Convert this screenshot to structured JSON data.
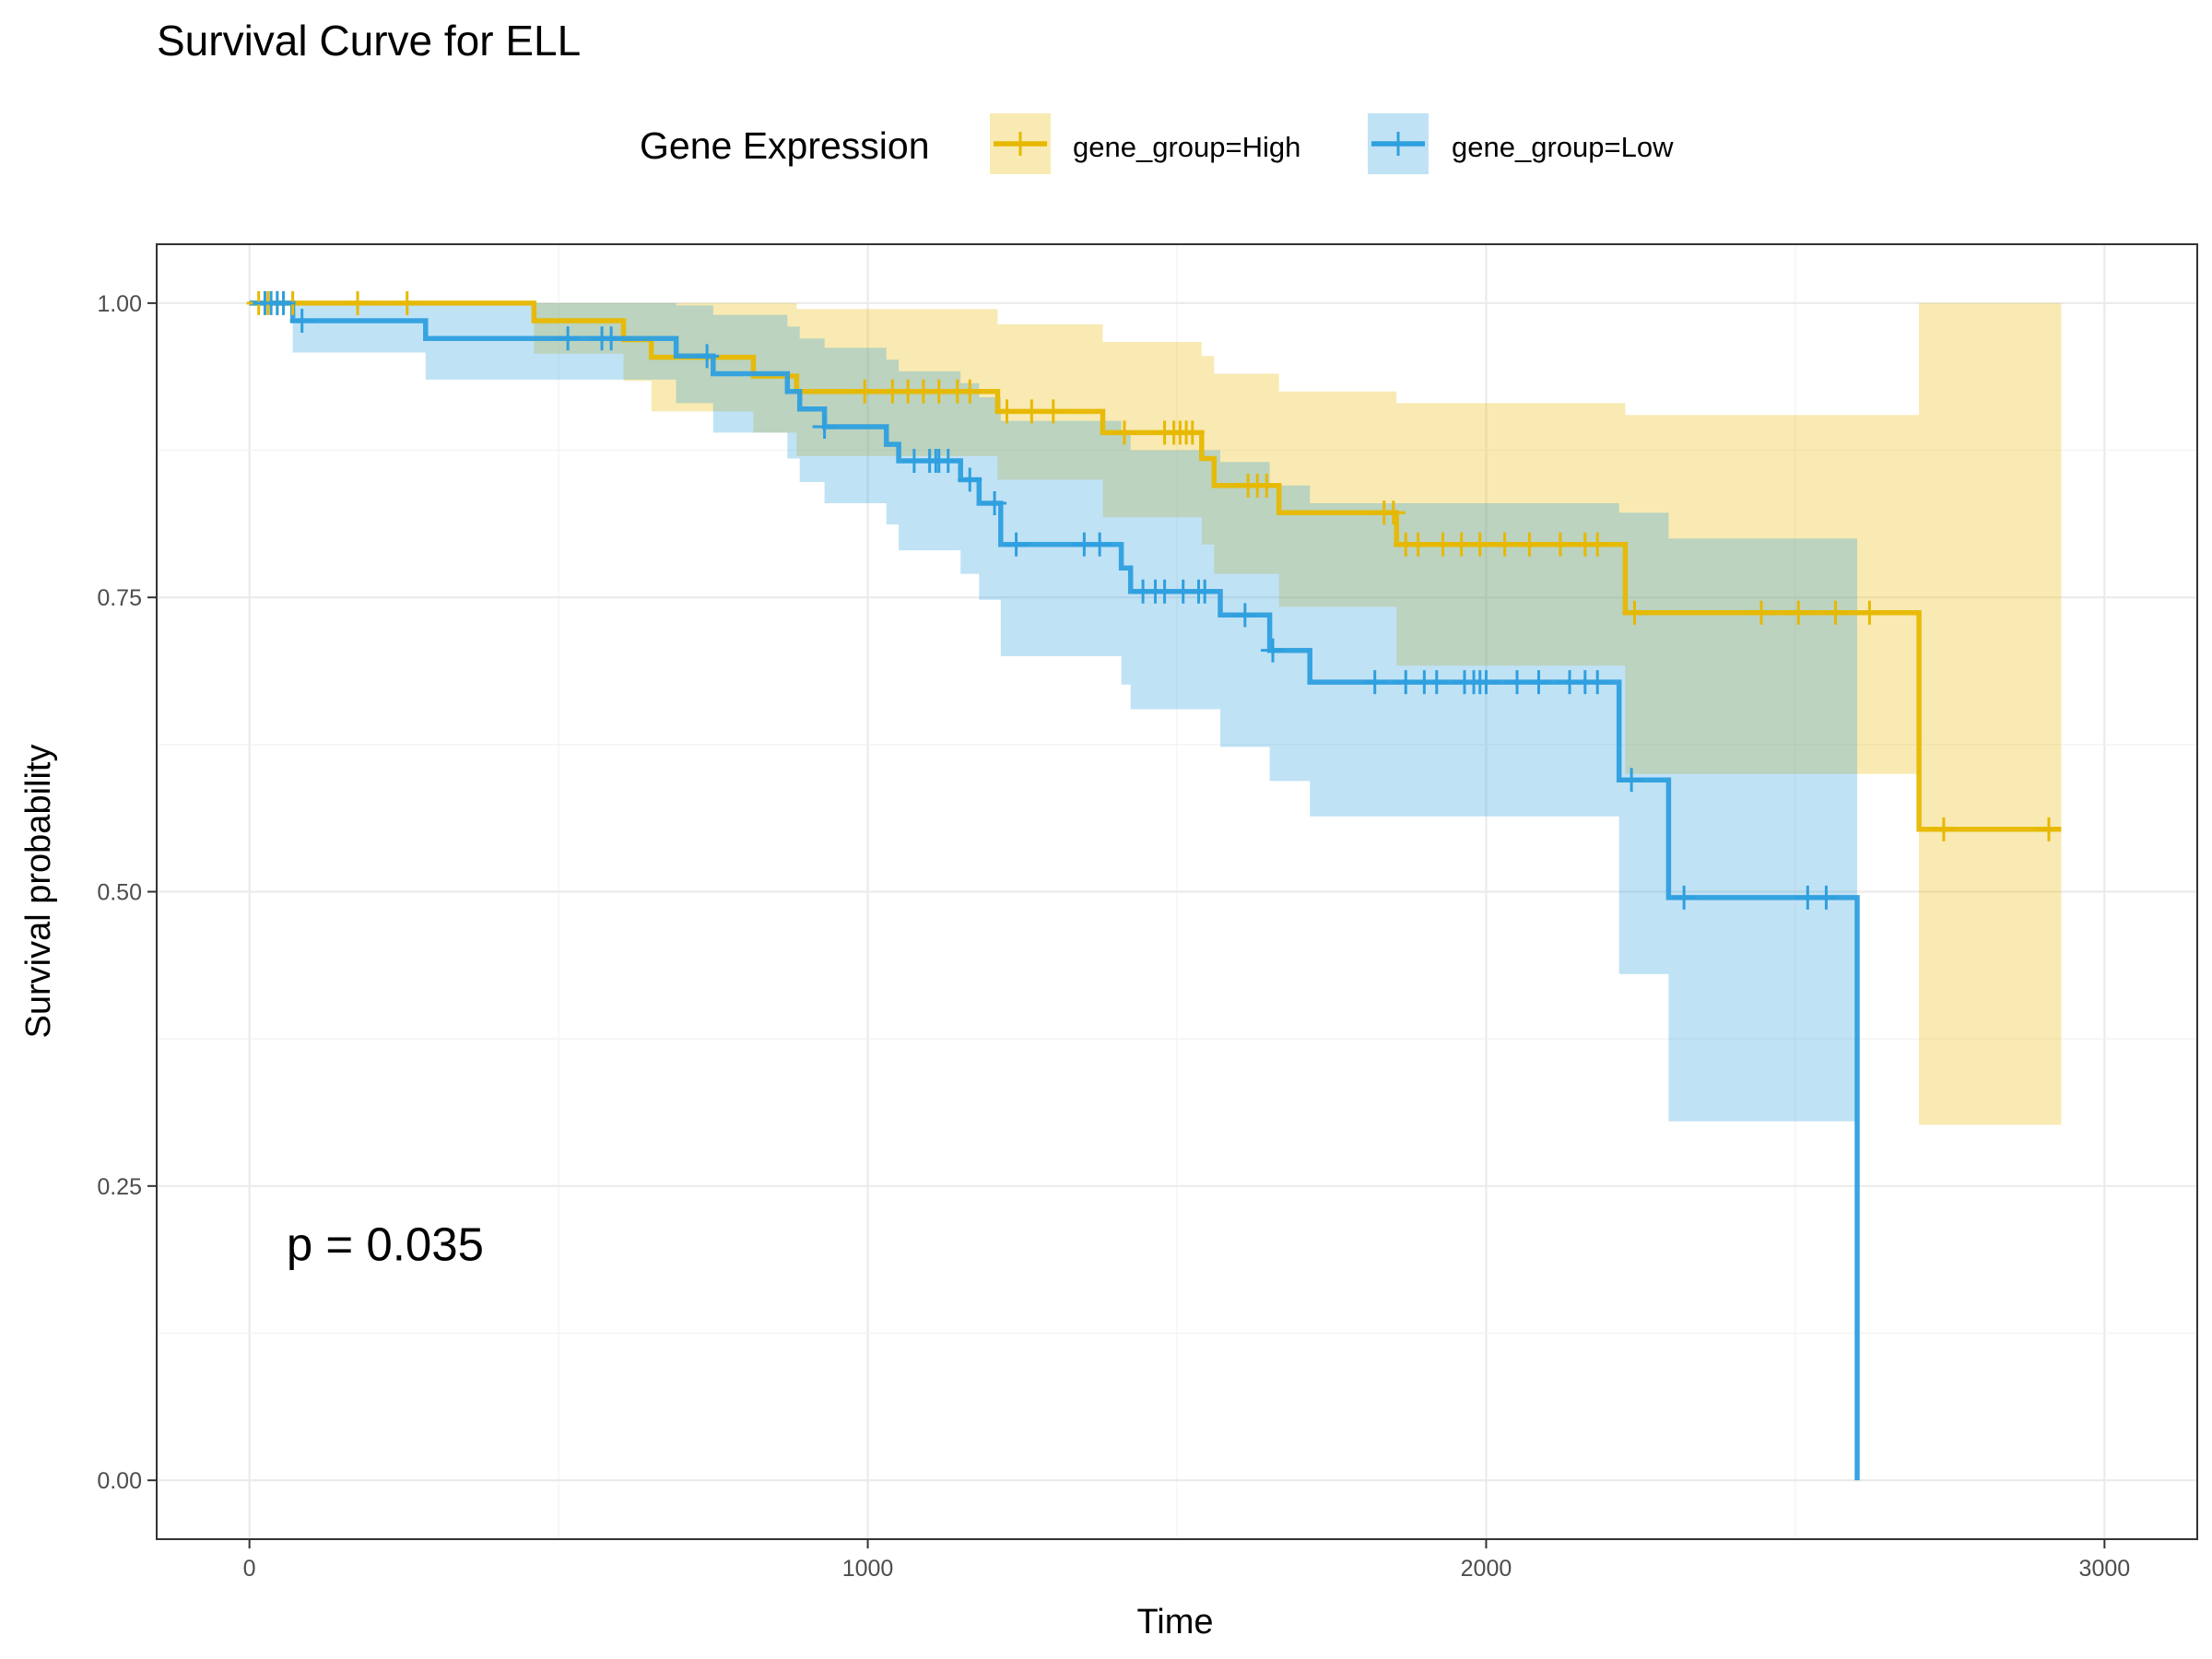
{
  "chart_data": {
    "type": "line",
    "title": "Survival Curve for ELL",
    "xlabel": "Time",
    "ylabel": "Survival probability",
    "xlim": [
      -150,
      3150
    ],
    "ylim": [
      -0.05,
      1.05
    ],
    "x_ticks": [
      0,
      1000,
      2000,
      3000
    ],
    "x_tick_labels": [
      "0",
      "1000",
      "2000",
      "3000"
    ],
    "y_ticks": [
      0,
      0.25,
      0.5,
      0.75,
      1
    ],
    "y_tick_labels": [
      "0.00",
      "0.25",
      "0.50",
      "0.75",
      "1.00"
    ],
    "grid": true,
    "legend": {
      "title": "Gene Expression",
      "position": "top",
      "entries": [
        "gene_group=High",
        "gene_group=Low"
      ]
    },
    "annotation": {
      "text": "p = 0.035",
      "x": 60,
      "y": 0.2
    },
    "series": [
      {
        "name": "gene_group=High",
        "color": "#E7B800",
        "steps": [
          {
            "x": 0,
            "y": 1.0,
            "lower": 1.0,
            "upper": 1.0
          },
          {
            "x": 460,
            "y": 0.985,
            "lower": 0.957,
            "upper": 1.0
          },
          {
            "x": 605,
            "y": 0.969,
            "lower": 0.934,
            "upper": 1.0
          },
          {
            "x": 650,
            "y": 0.954,
            "lower": 0.908,
            "upper": 1.0
          },
          {
            "x": 815,
            "y": 0.938,
            "lower": 0.89,
            "upper": 1.0
          },
          {
            "x": 885,
            "y": 0.925,
            "lower": 0.87,
            "upper": 0.995
          },
          {
            "x": 1210,
            "y": 0.908,
            "lower": 0.85,
            "upper": 0.982
          },
          {
            "x": 1380,
            "y": 0.89,
            "lower": 0.818,
            "upper": 0.967
          },
          {
            "x": 1540,
            "y": 0.868,
            "lower": 0.795,
            "upper": 0.955
          },
          {
            "x": 1560,
            "y": 0.845,
            "lower": 0.77,
            "upper": 0.94
          },
          {
            "x": 1665,
            "y": 0.822,
            "lower": 0.742,
            "upper": 0.925
          },
          {
            "x": 1855,
            "y": 0.795,
            "lower": 0.692,
            "upper": 0.915
          },
          {
            "x": 2225,
            "y": 0.737,
            "lower": 0.6,
            "upper": 0.905
          },
          {
            "x": 2700,
            "y": 0.553,
            "lower": 0.302,
            "upper": 1.0
          }
        ],
        "end_x": 2930,
        "censored": [
          {
            "x": 15,
            "y": 1.0
          },
          {
            "x": 30,
            "y": 1.0
          },
          {
            "x": 45,
            "y": 1.0
          },
          {
            "x": 70,
            "y": 1.0
          },
          {
            "x": 175,
            "y": 1.0
          },
          {
            "x": 255,
            "y": 1.0
          },
          {
            "x": 995,
            "y": 0.925
          },
          {
            "x": 1040,
            "y": 0.925
          },
          {
            "x": 1065,
            "y": 0.925
          },
          {
            "x": 1090,
            "y": 0.925
          },
          {
            "x": 1115,
            "y": 0.925
          },
          {
            "x": 1145,
            "y": 0.925
          },
          {
            "x": 1165,
            "y": 0.925
          },
          {
            "x": 1225,
            "y": 0.908
          },
          {
            "x": 1265,
            "y": 0.908
          },
          {
            "x": 1300,
            "y": 0.908
          },
          {
            "x": 1415,
            "y": 0.89
          },
          {
            "x": 1480,
            "y": 0.89
          },
          {
            "x": 1495,
            "y": 0.89
          },
          {
            "x": 1505,
            "y": 0.89
          },
          {
            "x": 1515,
            "y": 0.89
          },
          {
            "x": 1525,
            "y": 0.89
          },
          {
            "x": 1615,
            "y": 0.845
          },
          {
            "x": 1630,
            "y": 0.845
          },
          {
            "x": 1645,
            "y": 0.845
          },
          {
            "x": 1835,
            "y": 0.822
          },
          {
            "x": 1850,
            "y": 0.822
          },
          {
            "x": 1870,
            "y": 0.795
          },
          {
            "x": 1890,
            "y": 0.795
          },
          {
            "x": 1930,
            "y": 0.795
          },
          {
            "x": 1960,
            "y": 0.795
          },
          {
            "x": 1990,
            "y": 0.795
          },
          {
            "x": 2030,
            "y": 0.795
          },
          {
            "x": 2070,
            "y": 0.795
          },
          {
            "x": 2120,
            "y": 0.795
          },
          {
            "x": 2160,
            "y": 0.795
          },
          {
            "x": 2180,
            "y": 0.795
          },
          {
            "x": 2240,
            "y": 0.737
          },
          {
            "x": 2445,
            "y": 0.737
          },
          {
            "x": 2505,
            "y": 0.737
          },
          {
            "x": 2565,
            "y": 0.737
          },
          {
            "x": 2620,
            "y": 0.737
          },
          {
            "x": 2740,
            "y": 0.553
          },
          {
            "x": 2910,
            "y": 0.553
          }
        ]
      },
      {
        "name": "gene_group=Low",
        "color": "#2E9FDF",
        "steps": [
          {
            "x": 0,
            "y": 1.0,
            "lower": 1.0,
            "upper": 1.0
          },
          {
            "x": 70,
            "y": 0.985,
            "lower": 0.958,
            "upper": 1.0
          },
          {
            "x": 285,
            "y": 0.97,
            "lower": 0.935,
            "upper": 1.0
          },
          {
            "x": 690,
            "y": 0.955,
            "lower": 0.915,
            "upper": 0.998
          },
          {
            "x": 750,
            "y": 0.94,
            "lower": 0.89,
            "upper": 0.99
          },
          {
            "x": 870,
            "y": 0.925,
            "lower": 0.868,
            "upper": 0.98
          },
          {
            "x": 890,
            "y": 0.91,
            "lower": 0.848,
            "upper": 0.97
          },
          {
            "x": 930,
            "y": 0.895,
            "lower": 0.83,
            "upper": 0.962
          },
          {
            "x": 1030,
            "y": 0.88,
            "lower": 0.812,
            "upper": 0.952
          },
          {
            "x": 1050,
            "y": 0.866,
            "lower": 0.79,
            "upper": 0.942
          },
          {
            "x": 1150,
            "y": 0.85,
            "lower": 0.77,
            "upper": 0.932
          },
          {
            "x": 1180,
            "y": 0.83,
            "lower": 0.748,
            "upper": 0.92
          },
          {
            "x": 1215,
            "y": 0.795,
            "lower": 0.7,
            "upper": 0.9
          },
          {
            "x": 1410,
            "y": 0.775,
            "lower": 0.676,
            "upper": 0.888
          },
          {
            "x": 1425,
            "y": 0.755,
            "lower": 0.655,
            "upper": 0.875
          },
          {
            "x": 1570,
            "y": 0.735,
            "lower": 0.623,
            "upper": 0.865
          },
          {
            "x": 1650,
            "y": 0.705,
            "lower": 0.594,
            "upper": 0.845
          },
          {
            "x": 1715,
            "y": 0.678,
            "lower": 0.564,
            "upper": 0.83
          },
          {
            "x": 2215,
            "y": 0.595,
            "lower": 0.43,
            "upper": 0.822
          },
          {
            "x": 2295,
            "y": 0.495,
            "lower": 0.305,
            "upper": 0.8
          },
          {
            "x": 2600,
            "y": 0.0,
            "lower": 0.0,
            "upper": 0.0
          }
        ],
        "end_x": 2600,
        "censored": [
          {
            "x": 25,
            "y": 1.0
          },
          {
            "x": 35,
            "y": 1.0
          },
          {
            "x": 45,
            "y": 1.0
          },
          {
            "x": 55,
            "y": 1.0
          },
          {
            "x": 85,
            "y": 0.985
          },
          {
            "x": 515,
            "y": 0.97
          },
          {
            "x": 570,
            "y": 0.97
          },
          {
            "x": 585,
            "y": 0.97
          },
          {
            "x": 740,
            "y": 0.955
          },
          {
            "x": 930,
            "y": 0.895
          },
          {
            "x": 1075,
            "y": 0.866
          },
          {
            "x": 1100,
            "y": 0.866
          },
          {
            "x": 1110,
            "y": 0.866
          },
          {
            "x": 1115,
            "y": 0.866
          },
          {
            "x": 1130,
            "y": 0.866
          },
          {
            "x": 1165,
            "y": 0.85
          },
          {
            "x": 1205,
            "y": 0.83
          },
          {
            "x": 1240,
            "y": 0.795
          },
          {
            "x": 1350,
            "y": 0.795
          },
          {
            "x": 1375,
            "y": 0.795
          },
          {
            "x": 1445,
            "y": 0.755
          },
          {
            "x": 1465,
            "y": 0.755
          },
          {
            "x": 1480,
            "y": 0.755
          },
          {
            "x": 1510,
            "y": 0.755
          },
          {
            "x": 1535,
            "y": 0.755
          },
          {
            "x": 1545,
            "y": 0.755
          },
          {
            "x": 1610,
            "y": 0.735
          },
          {
            "x": 1655,
            "y": 0.705
          },
          {
            "x": 1820,
            "y": 0.678
          },
          {
            "x": 1870,
            "y": 0.678
          },
          {
            "x": 1900,
            "y": 0.678
          },
          {
            "x": 1920,
            "y": 0.678
          },
          {
            "x": 1965,
            "y": 0.678
          },
          {
            "x": 1980,
            "y": 0.678
          },
          {
            "x": 1990,
            "y": 0.678
          },
          {
            "x": 2000,
            "y": 0.678
          },
          {
            "x": 2050,
            "y": 0.678
          },
          {
            "x": 2085,
            "y": 0.678
          },
          {
            "x": 2135,
            "y": 0.678
          },
          {
            "x": 2160,
            "y": 0.678
          },
          {
            "x": 2180,
            "y": 0.678
          },
          {
            "x": 2235,
            "y": 0.595
          },
          {
            "x": 2320,
            "y": 0.495
          },
          {
            "x": 2520,
            "y": 0.495
          },
          {
            "x": 2550,
            "y": 0.495
          }
        ]
      }
    ]
  }
}
